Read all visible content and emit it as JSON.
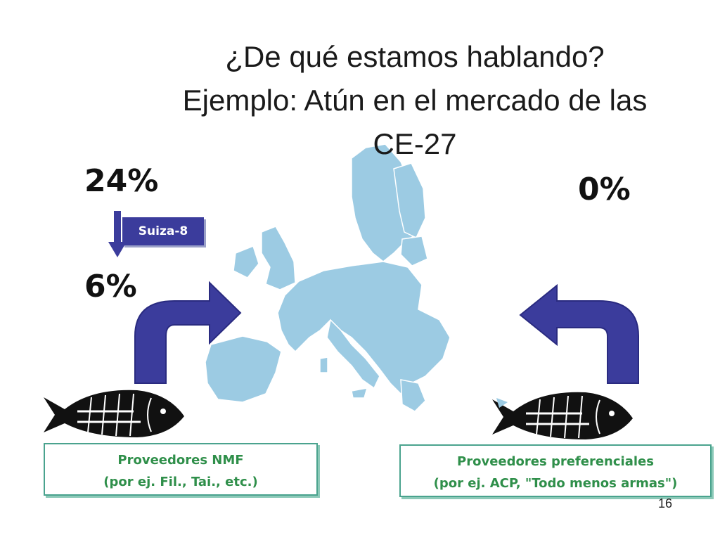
{
  "slide": {
    "title_lines": [
      "¿De qué estamos hablando?",
      "Ejemplo: Atún en el mercado de las",
      "CE-27"
    ],
    "left": {
      "tariff_before": "24%",
      "tariff_after": "6%",
      "reduction_label": "Suiza-8"
    },
    "right": {
      "tariff": "0%"
    },
    "suppliers_nmf": {
      "line1": "Proveedores NMF",
      "line2": "(por ej. Fil., Tai., etc.)"
    },
    "suppliers_pref": {
      "line1": "Proveedores preferenciales",
      "line2": "(por ej. ACP, \"Todo menos armas\")"
    },
    "page_number": "16"
  },
  "colors": {
    "map": "#9ccbe3",
    "arrow": "#3b3c9c",
    "box_text": "#2f8f4a",
    "box_border": "#4aa38e"
  },
  "icons": [
    "eu-map",
    "fish-icon",
    "curved-arrow-right",
    "curved-arrow-left",
    "down-arrow-icon"
  ]
}
